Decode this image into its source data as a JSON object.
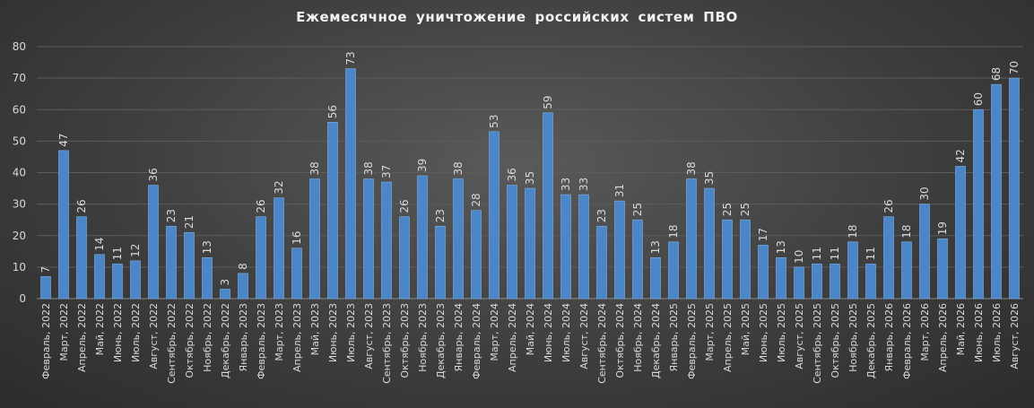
{
  "chart_data": {
    "type": "bar",
    "title": "Ежемесячное уничтожение российских систем ПВО",
    "xlabel": "",
    "ylabel": "",
    "ylim": [
      0,
      80
    ],
    "yticks": [
      0,
      10,
      20,
      30,
      40,
      50,
      60,
      70,
      80
    ],
    "grid": true,
    "legend": "none",
    "bar_color": "#4a86c8",
    "categories": [
      "Февраль, 2022",
      "Март, 2022",
      "Апрель, 2022",
      "Май, 2022",
      "Июнь, 2022",
      "Июль, 2022",
      "Август, 2022",
      "Сентябрь, 2022",
      "Октябрь, 2022",
      "Ноябрь, 2022",
      "Декабрь, 2022",
      "Январь, 2023",
      "Февраль, 2023",
      "Март, 2023",
      "Апрель, 2023",
      "Май, 2023",
      "Июнь, 2023",
      "Июль, 2023",
      "Август, 2023",
      "Сентябрь, 2023",
      "Октябрь, 2023",
      "Ноябрь, 2023",
      "Декабрь, 2023",
      "Январь, 2024",
      "Февраль, 2024",
      "Март, 2024",
      "Апрель, 2024",
      "Май, 2024",
      "Июнь, 2024",
      "Июль, 2024",
      "Август, 2024",
      "Сентябрь, 2024",
      "Октябрь, 2024",
      "Ноябрь, 2024",
      "Декабрь, 2024",
      "Январь, 2025",
      "Февраль, 2025",
      "Март, 2025",
      "Апрель, 2025",
      "Май, 2025",
      "Июнь, 2025",
      "Июль, 2025",
      "Август, 2025",
      "Сентябрь, 2025",
      "Октябрь, 2025",
      "Ноябрь, 2025",
      "Декабрь, 2025",
      "Январь, 2026",
      "Февраль, 2026",
      "Март, 2026",
      "Апрель, 2026",
      "Май, 2026",
      "Июнь, 2026",
      "Июль, 2026",
      "Август, 2026"
    ],
    "values": [
      7,
      47,
      26,
      14,
      11,
      12,
      36,
      23,
      21,
      13,
      3,
      8,
      26,
      32,
      16,
      38,
      56,
      73,
      38,
      37,
      26,
      39,
      23,
      38,
      28,
      53,
      36,
      35,
      59,
      33,
      33,
      23,
      31,
      25,
      13,
      18,
      38,
      35,
      25,
      25,
      17,
      13,
      10,
      11,
      11,
      18,
      11,
      26,
      18,
      30,
      19,
      42,
      60,
      68,
      70
    ]
  }
}
